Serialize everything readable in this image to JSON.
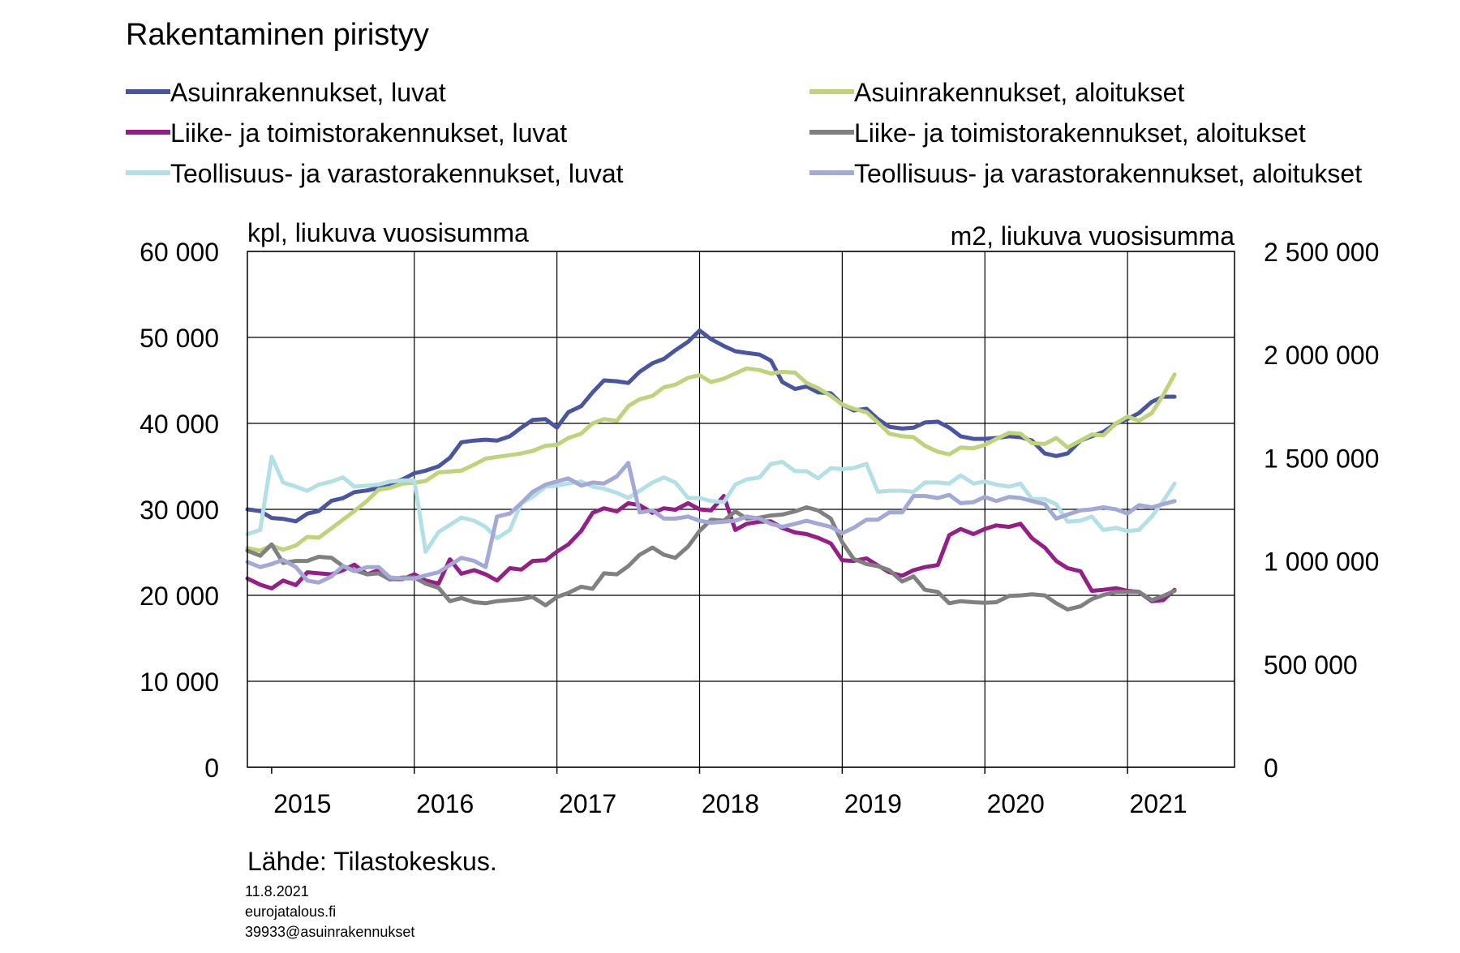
{
  "chart_data": {
    "type": "line",
    "title": "Rakentaminen piristyy",
    "left_axis_unit": "kpl, liukuva vuosisumma",
    "right_axis_unit": "m2, liukuva vuosisumma",
    "x_tick_labels": [
      "2015",
      "2016",
      "2017",
      "2018",
      "2019",
      "2020",
      "2021"
    ],
    "x_range": [
      2014.83,
      2021.75
    ],
    "y_left": {
      "range": [
        0,
        60000
      ],
      "ticks": [
        "0",
        "10 000",
        "20 000",
        "30 000",
        "40 000",
        "50 000",
        "60 000"
      ]
    },
    "y_right": {
      "range": [
        0,
        2500000
      ],
      "ticks": [
        "0",
        "500 000",
        "1 000 000",
        "1 500 000",
        "2 000 000",
        "2 500 000"
      ]
    },
    "grid": true,
    "legend_position": "top",
    "series": [
      {
        "name": "Asuinrakennukset, luvat",
        "axis": "left",
        "color": "#4a55a2",
        "x": [
          2014.83,
          2014.92,
          2015.0,
          2015.08,
          2015.17,
          2015.25,
          2015.33,
          2015.42,
          2015.5,
          2015.58,
          2015.67,
          2015.75,
          2015.83,
          2015.92,
          2016.0,
          2016.08,
          2016.17,
          2016.25,
          2016.33,
          2016.42,
          2016.5,
          2016.58,
          2016.67,
          2016.75,
          2016.83,
          2016.92,
          2017.0,
          2017.08,
          2017.17,
          2017.25,
          2017.33,
          2017.42,
          2017.5,
          2017.58,
          2017.67,
          2017.75,
          2017.83,
          2017.92,
          2018.0,
          2018.08,
          2018.17,
          2018.25,
          2018.33,
          2018.42,
          2018.5,
          2018.58,
          2018.67,
          2018.75,
          2018.83,
          2018.92,
          2019.0,
          2019.08,
          2019.17,
          2019.25,
          2019.33,
          2019.42,
          2019.5,
          2019.58,
          2019.67,
          2019.75,
          2019.83,
          2019.92,
          2020.0,
          2020.08,
          2020.17,
          2020.25,
          2020.33,
          2020.42,
          2020.5,
          2020.58,
          2020.67,
          2020.75,
          2020.83,
          2020.92,
          2021.0,
          2021.08,
          2021.17,
          2021.25,
          2021.33
        ],
        "y": [
          30000,
          29800,
          29000,
          28900,
          28600,
          29500,
          29800,
          31000,
          31300,
          32000,
          32200,
          32500,
          33000,
          33500,
          34200,
          34500,
          35000,
          36000,
          37800,
          38000,
          38100,
          38000,
          38500,
          39500,
          40400,
          40500,
          39500,
          41300,
          42000,
          43600,
          45000,
          44900,
          44700,
          46000,
          47000,
          47500,
          48500,
          49500,
          50800,
          49800,
          49000,
          48400,
          48200,
          48000,
          47300,
          44800,
          44000,
          44300,
          43600,
          43500,
          42200,
          41500,
          41700,
          40500,
          39600,
          39400,
          39500,
          40100,
          40200,
          39500,
          38500,
          38200,
          38200,
          38300,
          38500,
          38400,
          38000,
          36500,
          36200,
          36500,
          38000,
          38500,
          39000,
          40000,
          40500,
          41200,
          42500,
          43100,
          43100
        ]
      },
      {
        "name": "Asuinrakennukset, aloitukset",
        "axis": "left",
        "color": "#bfd37b",
        "x": [
          2014.83,
          2014.92,
          2015.0,
          2015.08,
          2015.17,
          2015.25,
          2015.33,
          2015.42,
          2015.5,
          2015.58,
          2015.67,
          2015.75,
          2015.83,
          2015.92,
          2016.0,
          2016.08,
          2016.17,
          2016.25,
          2016.33,
          2016.42,
          2016.5,
          2016.58,
          2016.67,
          2016.75,
          2016.83,
          2016.92,
          2017.0,
          2017.08,
          2017.17,
          2017.25,
          2017.33,
          2017.42,
          2017.5,
          2017.58,
          2017.67,
          2017.75,
          2017.83,
          2017.92,
          2018.0,
          2018.08,
          2018.17,
          2018.25,
          2018.33,
          2018.42,
          2018.5,
          2018.58,
          2018.67,
          2018.75,
          2018.83,
          2018.92,
          2019.0,
          2019.08,
          2019.17,
          2019.25,
          2019.33,
          2019.42,
          2019.5,
          2019.58,
          2019.67,
          2019.75,
          2019.83,
          2019.92,
          2020.0,
          2020.08,
          2020.17,
          2020.25,
          2020.33,
          2020.42,
          2020.5,
          2020.58,
          2020.67,
          2020.75,
          2020.83,
          2020.92,
          2021.0,
          2021.08,
          2021.17,
          2021.25,
          2021.33
        ],
        "y": [
          25500,
          25200,
          25800,
          25300,
          25800,
          26800,
          26700,
          27800,
          28800,
          29800,
          31000,
          32300,
          32500,
          33000,
          33100,
          33300,
          34300,
          34400,
          34500,
          35200,
          35900,
          36100,
          36300,
          36500,
          36800,
          37400,
          37500,
          38300,
          38800,
          40000,
          40500,
          40300,
          42000,
          42800,
          43200,
          44200,
          44500,
          45300,
          45600,
          44800,
          45200,
          45800,
          46400,
          46200,
          45800,
          46000,
          45900,
          44700,
          44100,
          43200,
          42200,
          41700,
          41300,
          40100,
          38800,
          38500,
          38400,
          37400,
          36700,
          36400,
          37200,
          37100,
          37500,
          38200,
          38900,
          38800,
          37700,
          37600,
          38300,
          37200,
          38000,
          38700,
          38600,
          40000,
          40800,
          40300,
          41200,
          43300,
          45700
        ]
      },
      {
        "name": "Liike- ja toimistorakennukset, luvat",
        "axis": "right",
        "color": "#951f87",
        "x": [
          2014.83,
          2014.92,
          2015.0,
          2015.08,
          2015.17,
          2015.25,
          2015.33,
          2015.42,
          2015.5,
          2015.58,
          2015.67,
          2015.75,
          2015.83,
          2015.92,
          2016.0,
          2016.08,
          2016.17,
          2016.25,
          2016.33,
          2016.42,
          2016.5,
          2016.58,
          2016.67,
          2016.75,
          2016.83,
          2016.92,
          2017.0,
          2017.08,
          2017.17,
          2017.25,
          2017.33,
          2017.42,
          2017.5,
          2017.58,
          2017.67,
          2017.75,
          2017.83,
          2017.92,
          2018.0,
          2018.08,
          2018.17,
          2018.25,
          2018.33,
          2018.42,
          2018.5,
          2018.58,
          2018.67,
          2018.75,
          2018.83,
          2018.92,
          2019.0,
          2019.08,
          2019.17,
          2019.25,
          2019.33,
          2019.42,
          2019.5,
          2019.58,
          2019.67,
          2019.75,
          2019.83,
          2019.92,
          2020.0,
          2020.08,
          2020.17,
          2020.25,
          2020.33,
          2020.42,
          2020.5,
          2020.58,
          2020.67,
          2020.75,
          2020.83,
          2020.92,
          2021.0,
          2021.08,
          2021.17,
          2021.25,
          2021.33
        ],
        "y": [
          915000,
          885000,
          867000,
          905000,
          883000,
          945000,
          940000,
          935000,
          955000,
          982000,
          935000,
          955000,
          912000,
          912000,
          935000,
          905000,
          890000,
          1008000,
          938000,
          955000,
          935000,
          905000,
          965000,
          958000,
          1000000,
          1003000,
          1045000,
          1080000,
          1145000,
          1233000,
          1255000,
          1240000,
          1280000,
          1270000,
          1233000,
          1255000,
          1248000,
          1280000,
          1250000,
          1245000,
          1315000,
          1150000,
          1180000,
          1190000,
          1192000,
          1160000,
          1138000,
          1130000,
          1112000,
          1085000,
          1003000,
          1000000,
          1012000,
          978000,
          945000,
          928000,
          955000,
          970000,
          980000,
          1125000,
          1155000,
          1130000,
          1155000,
          1172000,
          1165000,
          1180000,
          1110000,
          1065000,
          1000000,
          965000,
          950000,
          855000,
          860000,
          868000,
          855000,
          850000,
          805000,
          810000,
          860000
        ]
      },
      {
        "name": "Liike- ja toimistorakennukset, aloitukset",
        "axis": "right",
        "color": "#808080",
        "x": [
          2014.83,
          2014.92,
          2015.0,
          2015.08,
          2015.17,
          2015.25,
          2015.33,
          2015.42,
          2015.5,
          2015.58,
          2015.67,
          2015.75,
          2015.83,
          2015.92,
          2016.0,
          2016.08,
          2016.17,
          2016.25,
          2016.33,
          2016.42,
          2016.5,
          2016.58,
          2016.67,
          2016.75,
          2016.83,
          2016.92,
          2017.0,
          2017.08,
          2017.17,
          2017.25,
          2017.33,
          2017.42,
          2017.5,
          2017.58,
          2017.67,
          2017.75,
          2017.83,
          2017.92,
          2018.0,
          2018.08,
          2018.17,
          2018.25,
          2018.33,
          2018.42,
          2018.5,
          2018.58,
          2018.67,
          2018.75,
          2018.83,
          2018.92,
          2019.0,
          2019.08,
          2019.17,
          2019.25,
          2019.33,
          2019.42,
          2019.5,
          2019.58,
          2019.67,
          2019.75,
          2019.83,
          2019.92,
          2020.0,
          2020.08,
          2020.17,
          2020.25,
          2020.33,
          2020.42,
          2020.5,
          2020.58,
          2020.67,
          2020.75,
          2020.83,
          2020.92,
          2021.0,
          2021.08,
          2021.17,
          2021.25,
          2021.33
        ],
        "y": [
          1050000,
          1025000,
          1080000,
          990000,
          1000000,
          1000000,
          1020000,
          1015000,
          975000,
          955000,
          935000,
          940000,
          910000,
          920000,
          920000,
          890000,
          870000,
          805000,
          820000,
          800000,
          795000,
          805000,
          810000,
          815000,
          825000,
          785000,
          825000,
          845000,
          875000,
          865000,
          940000,
          935000,
          975000,
          1030000,
          1065000,
          1030000,
          1015000,
          1070000,
          1145000,
          1200000,
          1195000,
          1240000,
          1205000,
          1210000,
          1220000,
          1225000,
          1240000,
          1260000,
          1245000,
          1205000,
          1090000,
          1010000,
          985000,
          975000,
          955000,
          900000,
          925000,
          860000,
          850000,
          795000,
          805000,
          800000,
          797000,
          800000,
          830000,
          833000,
          838000,
          833000,
          795000,
          765000,
          780000,
          815000,
          835000,
          850000,
          850000,
          850000,
          810000,
          830000,
          855000
        ]
      },
      {
        "name": "Teollisuus- ja varastorakennukset, luvat",
        "axis": "right",
        "color": "#b2e0e5",
        "x": [
          2014.83,
          2014.92,
          2015.0,
          2015.08,
          2015.17,
          2015.25,
          2015.33,
          2015.42,
          2015.5,
          2015.58,
          2015.67,
          2015.75,
          2015.83,
          2015.92,
          2016.0,
          2016.08,
          2016.17,
          2016.25,
          2016.33,
          2016.42,
          2016.5,
          2016.58,
          2016.67,
          2016.75,
          2016.83,
          2016.92,
          2017.0,
          2017.08,
          2017.17,
          2017.25,
          2017.33,
          2017.42,
          2017.5,
          2017.58,
          2017.67,
          2017.75,
          2017.83,
          2017.92,
          2018.0,
          2018.08,
          2018.17,
          2018.25,
          2018.33,
          2018.42,
          2018.5,
          2018.58,
          2018.67,
          2018.75,
          2018.83,
          2018.92,
          2019.0,
          2019.08,
          2019.17,
          2019.25,
          2019.33,
          2019.42,
          2019.5,
          2019.58,
          2019.67,
          2019.75,
          2019.83,
          2019.92,
          2020.0,
          2020.08,
          2020.17,
          2020.25,
          2020.33,
          2020.42,
          2020.5,
          2020.58,
          2020.67,
          2020.75,
          2020.83,
          2020.92,
          2021.0,
          2021.08,
          2021.17,
          2021.25,
          2021.33
        ],
        "y": [
          1130000,
          1150000,
          1505000,
          1380000,
          1360000,
          1340000,
          1370000,
          1385000,
          1405000,
          1360000,
          1365000,
          1370000,
          1385000,
          1390000,
          1390000,
          1045000,
          1140000,
          1175000,
          1210000,
          1195000,
          1165000,
          1110000,
          1150000,
          1280000,
          1310000,
          1360000,
          1365000,
          1375000,
          1385000,
          1360000,
          1350000,
          1330000,
          1305000,
          1340000,
          1380000,
          1405000,
          1380000,
          1305000,
          1305000,
          1290000,
          1285000,
          1370000,
          1395000,
          1405000,
          1470000,
          1480000,
          1435000,
          1435000,
          1400000,
          1450000,
          1445000,
          1450000,
          1470000,
          1335000,
          1340000,
          1340000,
          1335000,
          1380000,
          1380000,
          1375000,
          1415000,
          1375000,
          1385000,
          1370000,
          1360000,
          1375000,
          1300000,
          1300000,
          1275000,
          1190000,
          1195000,
          1215000,
          1150000,
          1160000,
          1145000,
          1150000,
          1215000,
          1290000,
          1375000
        ]
      },
      {
        "name": "Teollisuus- ja varastorakennukset, aloitukset",
        "axis": "right",
        "color": "#a3a8d6",
        "x": [
          2014.83,
          2014.92,
          2015.0,
          2015.08,
          2015.17,
          2015.25,
          2015.33,
          2015.42,
          2015.5,
          2015.58,
          2015.67,
          2015.75,
          2015.83,
          2015.92,
          2016.0,
          2016.08,
          2016.17,
          2016.25,
          2016.33,
          2016.42,
          2016.5,
          2016.58,
          2016.67,
          2016.75,
          2016.83,
          2016.92,
          2017.0,
          2017.08,
          2017.17,
          2017.25,
          2017.33,
          2017.42,
          2017.5,
          2017.58,
          2017.67,
          2017.75,
          2017.83,
          2017.92,
          2018.0,
          2018.08,
          2018.17,
          2018.25,
          2018.33,
          2018.42,
          2018.5,
          2018.58,
          2018.67,
          2018.75,
          2018.83,
          2018.92,
          2019.0,
          2019.08,
          2019.17,
          2019.25,
          2019.33,
          2019.42,
          2019.5,
          2019.58,
          2019.67,
          2019.75,
          2019.83,
          2019.92,
          2020.0,
          2020.08,
          2020.17,
          2020.25,
          2020.33,
          2020.42,
          2020.5,
          2020.58,
          2020.67,
          2020.75,
          2020.83,
          2020.92,
          2021.0,
          2021.08,
          2021.17,
          2021.25,
          2021.33
        ],
        "y": [
          995000,
          970000,
          985000,
          1005000,
          970000,
          905000,
          895000,
          925000,
          975000,
          950000,
          970000,
          970000,
          920000,
          915000,
          915000,
          930000,
          945000,
          980000,
          1015000,
          1000000,
          970000,
          1215000,
          1230000,
          1280000,
          1335000,
          1370000,
          1385000,
          1400000,
          1365000,
          1380000,
          1375000,
          1410000,
          1475000,
          1235000,
          1245000,
          1205000,
          1205000,
          1215000,
          1195000,
          1185000,
          1190000,
          1195000,
          1215000,
          1205000,
          1180000,
          1165000,
          1180000,
          1195000,
          1180000,
          1165000,
          1135000,
          1160000,
          1200000,
          1200000,
          1235000,
          1235000,
          1315000,
          1315000,
          1305000,
          1320000,
          1280000,
          1285000,
          1310000,
          1290000,
          1310000,
          1305000,
          1290000,
          1275000,
          1205000,
          1225000,
          1245000,
          1250000,
          1260000,
          1250000,
          1230000,
          1270000,
          1260000,
          1275000,
          1290000
        ]
      }
    ]
  },
  "source": "Lähde: Tilastokeskus.",
  "footer": {
    "date": "11.8.2021",
    "site": "eurojatalous.fi",
    "code": "39933@asuinrakennukset"
  }
}
